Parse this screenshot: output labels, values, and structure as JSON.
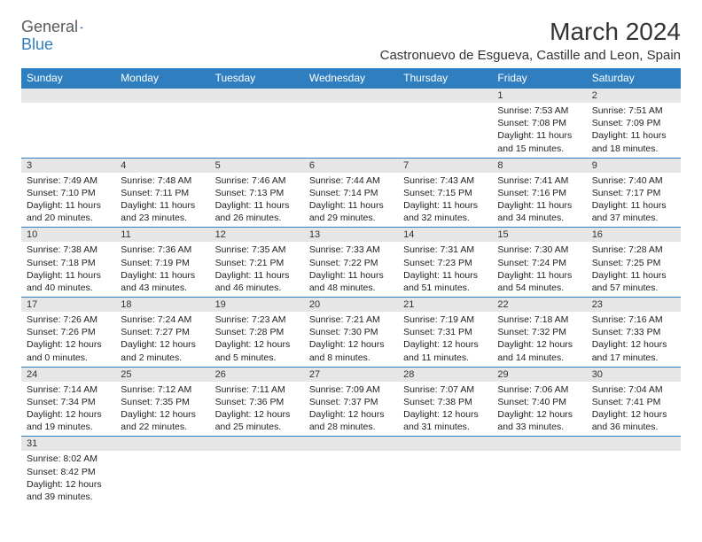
{
  "logo": {
    "general": "General",
    "blue": "Blue"
  },
  "title": "March 2024",
  "location": "Castronuevo de Esgueva, Castille and Leon, Spain",
  "weekdays": [
    "Sunday",
    "Monday",
    "Tuesday",
    "Wednesday",
    "Thursday",
    "Friday",
    "Saturday"
  ],
  "colors": {
    "header_bg": "#2f7fc0",
    "header_text": "#ffffff",
    "daynum_bg": "#e6e6e6",
    "border": "#2f7fc0",
    "text": "#222222"
  },
  "weeks": [
    [
      {
        "day": "",
        "lines": [
          "",
          "",
          "",
          ""
        ]
      },
      {
        "day": "",
        "lines": [
          "",
          "",
          "",
          ""
        ]
      },
      {
        "day": "",
        "lines": [
          "",
          "",
          "",
          ""
        ]
      },
      {
        "day": "",
        "lines": [
          "",
          "",
          "",
          ""
        ]
      },
      {
        "day": "",
        "lines": [
          "",
          "",
          "",
          ""
        ]
      },
      {
        "day": "1",
        "lines": [
          "Sunrise: 7:53 AM",
          "Sunset: 7:08 PM",
          "Daylight: 11 hours",
          "and 15 minutes."
        ]
      },
      {
        "day": "2",
        "lines": [
          "Sunrise: 7:51 AM",
          "Sunset: 7:09 PM",
          "Daylight: 11 hours",
          "and 18 minutes."
        ]
      }
    ],
    [
      {
        "day": "3",
        "lines": [
          "Sunrise: 7:49 AM",
          "Sunset: 7:10 PM",
          "Daylight: 11 hours",
          "and 20 minutes."
        ]
      },
      {
        "day": "4",
        "lines": [
          "Sunrise: 7:48 AM",
          "Sunset: 7:11 PM",
          "Daylight: 11 hours",
          "and 23 minutes."
        ]
      },
      {
        "day": "5",
        "lines": [
          "Sunrise: 7:46 AM",
          "Sunset: 7:13 PM",
          "Daylight: 11 hours",
          "and 26 minutes."
        ]
      },
      {
        "day": "6",
        "lines": [
          "Sunrise: 7:44 AM",
          "Sunset: 7:14 PM",
          "Daylight: 11 hours",
          "and 29 minutes."
        ]
      },
      {
        "day": "7",
        "lines": [
          "Sunrise: 7:43 AM",
          "Sunset: 7:15 PM",
          "Daylight: 11 hours",
          "and 32 minutes."
        ]
      },
      {
        "day": "8",
        "lines": [
          "Sunrise: 7:41 AM",
          "Sunset: 7:16 PM",
          "Daylight: 11 hours",
          "and 34 minutes."
        ]
      },
      {
        "day": "9",
        "lines": [
          "Sunrise: 7:40 AM",
          "Sunset: 7:17 PM",
          "Daylight: 11 hours",
          "and 37 minutes."
        ]
      }
    ],
    [
      {
        "day": "10",
        "lines": [
          "Sunrise: 7:38 AM",
          "Sunset: 7:18 PM",
          "Daylight: 11 hours",
          "and 40 minutes."
        ]
      },
      {
        "day": "11",
        "lines": [
          "Sunrise: 7:36 AM",
          "Sunset: 7:19 PM",
          "Daylight: 11 hours",
          "and 43 minutes."
        ]
      },
      {
        "day": "12",
        "lines": [
          "Sunrise: 7:35 AM",
          "Sunset: 7:21 PM",
          "Daylight: 11 hours",
          "and 46 minutes."
        ]
      },
      {
        "day": "13",
        "lines": [
          "Sunrise: 7:33 AM",
          "Sunset: 7:22 PM",
          "Daylight: 11 hours",
          "and 48 minutes."
        ]
      },
      {
        "day": "14",
        "lines": [
          "Sunrise: 7:31 AM",
          "Sunset: 7:23 PM",
          "Daylight: 11 hours",
          "and 51 minutes."
        ]
      },
      {
        "day": "15",
        "lines": [
          "Sunrise: 7:30 AM",
          "Sunset: 7:24 PM",
          "Daylight: 11 hours",
          "and 54 minutes."
        ]
      },
      {
        "day": "16",
        "lines": [
          "Sunrise: 7:28 AM",
          "Sunset: 7:25 PM",
          "Daylight: 11 hours",
          "and 57 minutes."
        ]
      }
    ],
    [
      {
        "day": "17",
        "lines": [
          "Sunrise: 7:26 AM",
          "Sunset: 7:26 PM",
          "Daylight: 12 hours",
          "and 0 minutes."
        ]
      },
      {
        "day": "18",
        "lines": [
          "Sunrise: 7:24 AM",
          "Sunset: 7:27 PM",
          "Daylight: 12 hours",
          "and 2 minutes."
        ]
      },
      {
        "day": "19",
        "lines": [
          "Sunrise: 7:23 AM",
          "Sunset: 7:28 PM",
          "Daylight: 12 hours",
          "and 5 minutes."
        ]
      },
      {
        "day": "20",
        "lines": [
          "Sunrise: 7:21 AM",
          "Sunset: 7:30 PM",
          "Daylight: 12 hours",
          "and 8 minutes."
        ]
      },
      {
        "day": "21",
        "lines": [
          "Sunrise: 7:19 AM",
          "Sunset: 7:31 PM",
          "Daylight: 12 hours",
          "and 11 minutes."
        ]
      },
      {
        "day": "22",
        "lines": [
          "Sunrise: 7:18 AM",
          "Sunset: 7:32 PM",
          "Daylight: 12 hours",
          "and 14 minutes."
        ]
      },
      {
        "day": "23",
        "lines": [
          "Sunrise: 7:16 AM",
          "Sunset: 7:33 PM",
          "Daylight: 12 hours",
          "and 17 minutes."
        ]
      }
    ],
    [
      {
        "day": "24",
        "lines": [
          "Sunrise: 7:14 AM",
          "Sunset: 7:34 PM",
          "Daylight: 12 hours",
          "and 19 minutes."
        ]
      },
      {
        "day": "25",
        "lines": [
          "Sunrise: 7:12 AM",
          "Sunset: 7:35 PM",
          "Daylight: 12 hours",
          "and 22 minutes."
        ]
      },
      {
        "day": "26",
        "lines": [
          "Sunrise: 7:11 AM",
          "Sunset: 7:36 PM",
          "Daylight: 12 hours",
          "and 25 minutes."
        ]
      },
      {
        "day": "27",
        "lines": [
          "Sunrise: 7:09 AM",
          "Sunset: 7:37 PM",
          "Daylight: 12 hours",
          "and 28 minutes."
        ]
      },
      {
        "day": "28",
        "lines": [
          "Sunrise: 7:07 AM",
          "Sunset: 7:38 PM",
          "Daylight: 12 hours",
          "and 31 minutes."
        ]
      },
      {
        "day": "29",
        "lines": [
          "Sunrise: 7:06 AM",
          "Sunset: 7:40 PM",
          "Daylight: 12 hours",
          "and 33 minutes."
        ]
      },
      {
        "day": "30",
        "lines": [
          "Sunrise: 7:04 AM",
          "Sunset: 7:41 PM",
          "Daylight: 12 hours",
          "and 36 minutes."
        ]
      }
    ],
    [
      {
        "day": "31",
        "lines": [
          "Sunrise: 8:02 AM",
          "Sunset: 8:42 PM",
          "Daylight: 12 hours",
          "and 39 minutes."
        ]
      },
      {
        "day": "",
        "lines": [
          "",
          "",
          "",
          ""
        ]
      },
      {
        "day": "",
        "lines": [
          "",
          "",
          "",
          ""
        ]
      },
      {
        "day": "",
        "lines": [
          "",
          "",
          "",
          ""
        ]
      },
      {
        "day": "",
        "lines": [
          "",
          "",
          "",
          ""
        ]
      },
      {
        "day": "",
        "lines": [
          "",
          "",
          "",
          ""
        ]
      },
      {
        "day": "",
        "lines": [
          "",
          "",
          "",
          ""
        ]
      }
    ]
  ]
}
